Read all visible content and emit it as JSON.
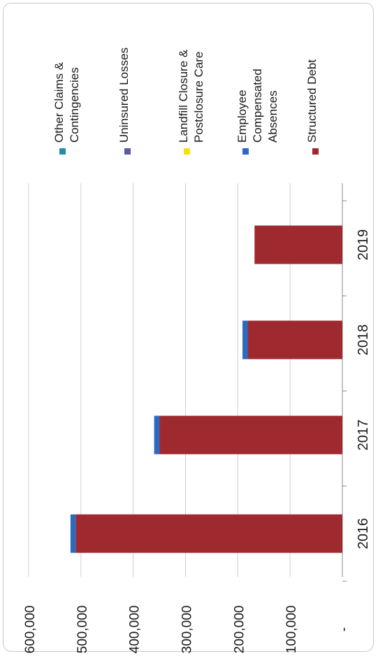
{
  "chart_data": {
    "type": "bar",
    "orientation": "stacked, rotated 90° (value axis horizontal in the image)",
    "categories": [
      "2016",
      "2017",
      "2018",
      "2019"
    ],
    "y_ticks": [
      "600,000",
      "500,000",
      "400,000",
      "300,000",
      "200,000",
      "100,000",
      "-"
    ],
    "ylim": [
      0,
      600000
    ],
    "grid": true,
    "legend_position": "right",
    "series": [
      {
        "name": "Other Claims & Contingencies",
        "label_lines": [
          "Other Claims &",
          "Contingencies"
        ],
        "color": "#1f8ea6",
        "values": [
          0,
          0,
          0,
          0
        ]
      },
      {
        "name": "Uninsured Losses",
        "label_lines": [
          "Uninsured Losses"
        ],
        "color": "#5b5b9a",
        "values": [
          0,
          0,
          0,
          0
        ]
      },
      {
        "name": "Landfill Closure & Postclosure Care",
        "label_lines": [
          "Landfill Closure &",
          "Postclosure Care"
        ],
        "color": "#f5e10a",
        "values": [
          0,
          0,
          0,
          0
        ]
      },
      {
        "name": "Employee Compensated Absences",
        "label_lines": [
          "Employee",
          "Compensated",
          "Absences"
        ],
        "color": "#2a6bbf",
        "values": [
          10000,
          10000,
          10000,
          0
        ]
      },
      {
        "name": "Structured Debt",
        "label_lines": [
          "Structured Debt"
        ],
        "color": "#9e2a2f",
        "values": [
          510000,
          350000,
          181000,
          168000
        ]
      }
    ]
  }
}
